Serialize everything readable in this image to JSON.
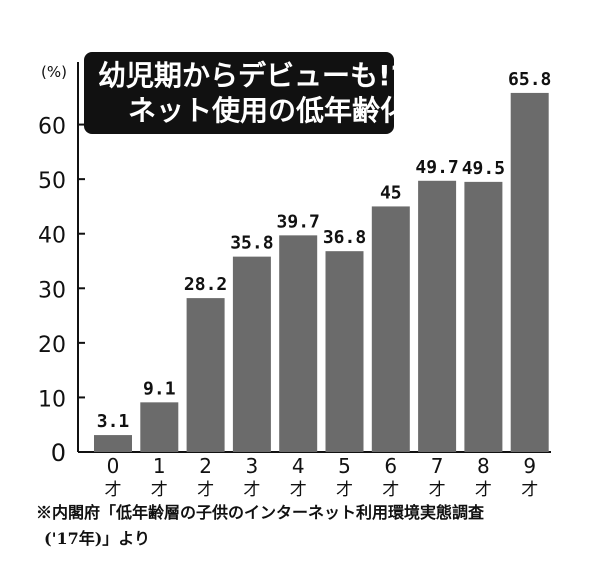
{
  "title": {
    "line1": "幼児期からデビューも!?",
    "line2": "ネット使用の低年齢化"
  },
  "source": {
    "line1": "※内閣府「低年齢層の子供のインターネット利用環境実態調査",
    "line2": "('17年)」より"
  },
  "colors": {
    "bar": "#6b6b6b",
    "title_bg": "#111111",
    "text": "#111111"
  },
  "chart_data": {
    "type": "bar",
    "title": "幼児期からデビューも!? ネット使用の低年齢化",
    "xlabel": "",
    "ylabel": "(%)",
    "ylim": [
      0,
      70
    ],
    "yticks": [
      0,
      10,
      20,
      30,
      40,
      50,
      60
    ],
    "grid": false,
    "categories": [
      "0才",
      "1才",
      "2才",
      "3才",
      "4才",
      "5才",
      "6才",
      "7才",
      "8才",
      "9才"
    ],
    "category_numbers": [
      "0",
      "1",
      "2",
      "3",
      "4",
      "5",
      "6",
      "7",
      "8",
      "9"
    ],
    "category_suffix": "才",
    "values": [
      3.1,
      9.1,
      28.2,
      35.8,
      39.7,
      36.8,
      45,
      49.7,
      49.5,
      65.8
    ],
    "value_labels": [
      "3.1",
      "9.1",
      "28.2",
      "35.8",
      "39.7",
      "36.8",
      "45",
      "49.7",
      "49.5",
      "65.8"
    ]
  }
}
